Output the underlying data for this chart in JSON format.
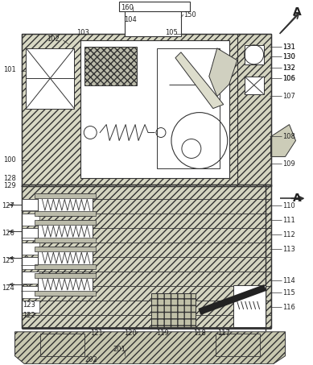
{
  "figsize": [
    3.89,
    4.53
  ],
  "dpi": 100,
  "lc": "#333333",
  "hc": "#c8c8b0",
  "hc2": "#d0d0bc",
  "white": "#ffffff",
  "gray": "#bbbbaa",
  "dark": "#222222"
}
